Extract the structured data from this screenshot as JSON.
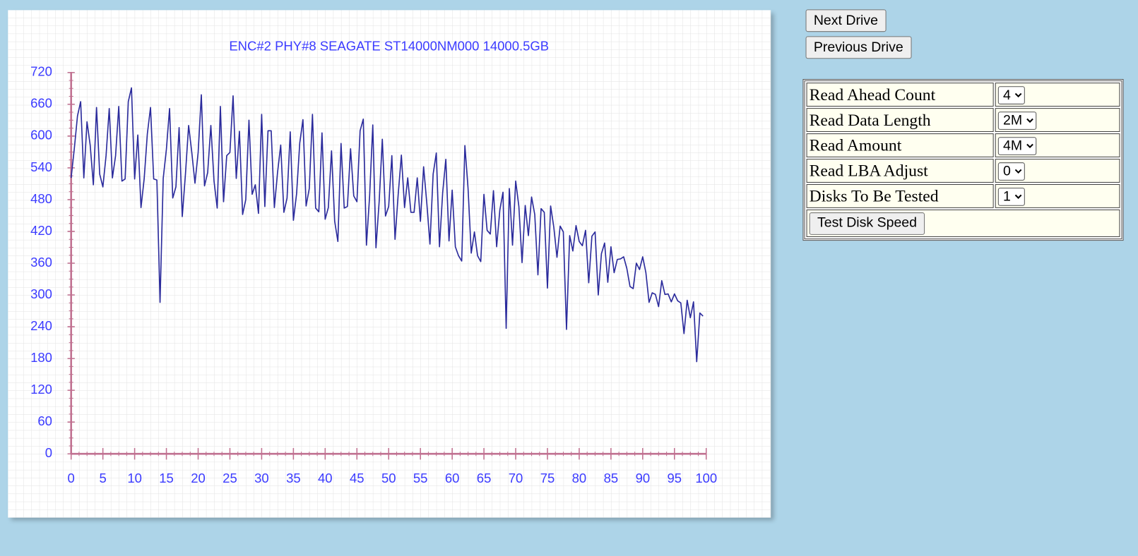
{
  "chart_data": {
    "type": "line",
    "title": "ENC#2 PHY#8 SEAGATE ST14000NM000 14000.5GB",
    "x": [
      0,
      0.5,
      1,
      1.5,
      2,
      2.5,
      3,
      3.5,
      4,
      4.5,
      5,
      5.5,
      6,
      6.5,
      7,
      7.5,
      8,
      8.5,
      9,
      9.5,
      10,
      10.5,
      11,
      11.5,
      12,
      12.5,
      13,
      13.5,
      14,
      14.5,
      15,
      15.5,
      16,
      16.5,
      17,
      17.5,
      18,
      18.5,
      19,
      19.5,
      20,
      20.5,
      21,
      21.5,
      22,
      22.5,
      23,
      23.5,
      24,
      24.5,
      25,
      25.5,
      26,
      26.5,
      27,
      27.5,
      28,
      28.5,
      29,
      29.5,
      30,
      30.5,
      31,
      31.5,
      32,
      32.5,
      33,
      33.5,
      34,
      34.5,
      35,
      35.5,
      36,
      36.5,
      37,
      37.5,
      38,
      38.5,
      39,
      39.5,
      40,
      40.5,
      41,
      41.5,
      42,
      42.5,
      43,
      43.5,
      44,
      44.5,
      45,
      45.5,
      46,
      46.5,
      47,
      47.5,
      48,
      48.5,
      49,
      49.5,
      50,
      50.5,
      51,
      51.5,
      52,
      52.5,
      53,
      53.5,
      54,
      54.5,
      55,
      55.5,
      56,
      56.5,
      57,
      57.5,
      58,
      58.5,
      59,
      59.5,
      60,
      60.5,
      61,
      61.5,
      62,
      62.5,
      63,
      63.5,
      64,
      64.5,
      65,
      65.5,
      66,
      66.5,
      67,
      67.5,
      68,
      68.5,
      69,
      69.5,
      70,
      70.5,
      71,
      71.5,
      72,
      72.5,
      73,
      73.5,
      74,
      74.5,
      75,
      75.5,
      76,
      76.5,
      77,
      77.5,
      78,
      78.5,
      79,
      79.5,
      80,
      80.5,
      81,
      81.5,
      82,
      82.5,
      83,
      83.5,
      84,
      84.5,
      85,
      85.5,
      86,
      86.5,
      87,
      87.5,
      88,
      88.5,
      89,
      89.5,
      90,
      90.5,
      91,
      91.5,
      92,
      92.5,
      93,
      93.5,
      94,
      94.5,
      95,
      95.5,
      96,
      96.5,
      97,
      97.5,
      98,
      98.5,
      99,
      99.5
    ],
    "values": [
      521,
      576,
      638,
      665,
      521,
      627,
      583,
      508,
      654,
      528,
      504,
      563,
      652,
      521,
      563,
      656,
      515,
      519,
      665,
      691,
      519,
      602,
      465,
      519,
      604,
      654,
      519,
      517,
      286,
      520,
      575,
      652,
      483,
      504,
      616,
      448,
      528,
      620,
      569,
      511,
      569,
      678,
      506,
      531,
      620,
      515,
      464,
      656,
      476,
      563,
      569,
      676,
      520,
      609,
      452,
      480,
      630,
      490,
      508,
      454,
      641,
      467,
      610,
      610,
      465,
      531,
      583,
      456,
      483,
      608,
      441,
      491,
      587,
      631,
      468,
      501,
      641,
      464,
      457,
      606,
      443,
      465,
      572,
      439,
      401,
      586,
      464,
      467,
      576,
      487,
      476,
      610,
      632,
      394,
      487,
      621,
      389,
      476,
      594,
      449,
      467,
      563,
      405,
      490,
      564,
      465,
      521,
      456,
      456,
      521,
      439,
      542,
      474,
      396,
      528,
      568,
      391,
      493,
      556,
      402,
      498,
      391,
      374,
      364,
      582,
      501,
      379,
      419,
      374,
      363,
      490,
      422,
      415,
      497,
      391,
      460,
      494,
      237,
      501,
      394,
      515,
      467,
      361,
      469,
      412,
      485,
      452,
      338,
      463,
      456,
      313,
      468,
      428,
      371,
      430,
      419,
      235,
      412,
      383,
      431,
      401,
      393,
      422,
      323,
      411,
      419,
      300,
      378,
      398,
      324,
      391,
      342,
      367,
      368,
      372,
      350,
      316,
      312,
      360,
      348,
      372,
      342,
      286,
      304,
      301,
      278,
      327,
      301,
      302,
      287,
      302,
      289,
      285,
      227,
      290,
      257,
      287,
      174,
      266,
      260
    ],
    "color": "#2b2b9c",
    "xlim": [
      0,
      100
    ],
    "ylim": [
      0,
      720
    ],
    "xticks": [
      0,
      5,
      10,
      15,
      20,
      25,
      30,
      35,
      40,
      45,
      50,
      55,
      60,
      65,
      70,
      75,
      80,
      85,
      90,
      95,
      100
    ],
    "yticks": [
      0,
      60,
      120,
      180,
      240,
      300,
      360,
      420,
      480,
      540,
      600,
      660,
      720
    ],
    "grid": true
  },
  "buttons": [
    "Next Drive",
    "Previous Drive"
  ],
  "settings": [
    {
      "label": "Read Ahead Count",
      "value": "4"
    },
    {
      "label": "Read Data Length",
      "value": "2M"
    },
    {
      "label": "Read Amount",
      "value": "4M"
    },
    {
      "label": "Read LBA Adjust",
      "value": "0"
    },
    {
      "label": "Disks To Be Tested",
      "value": "1"
    }
  ],
  "action": "Test Disk Speed"
}
